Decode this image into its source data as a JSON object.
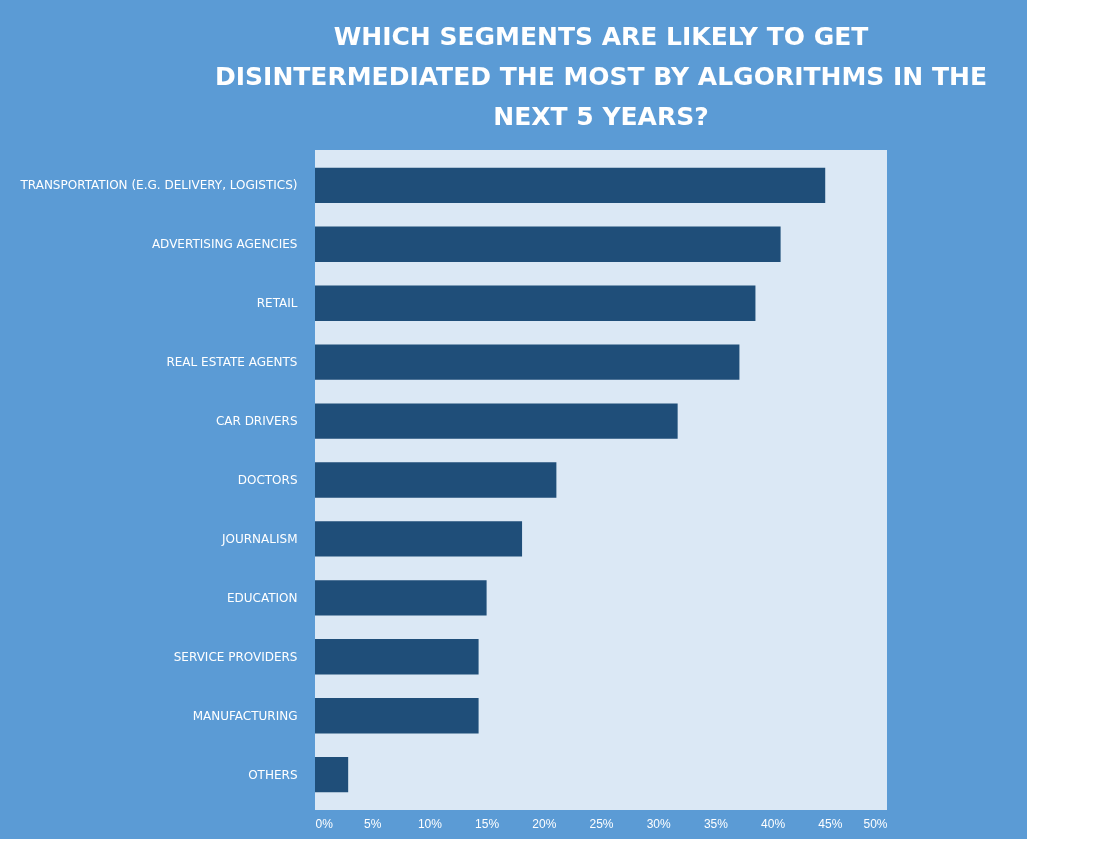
{
  "chart_data": {
    "type": "bar",
    "orientation": "horizontal",
    "title": [
      "WHICH SEGMENTS ARE LIKELY TO GET",
      "DISINTERMEDIATED THE MOST BY ALGORITHMS IN THE",
      "NEXT 5 YEARS?"
    ],
    "categories": [
      "TRANSPORTATION (E.G. DELIVERY, LOGISTICS)",
      "ADVERTISING AGENCIES",
      "RETAIL",
      "REAL ESTATE AGENTS",
      "CAR DRIVERS",
      "DOCTORS",
      "JOURNALISM",
      "EDUCATION",
      "SERVICE PROVIDERS",
      "MANUFACTURING",
      "OTHERS"
    ],
    "values": [
      44.6,
      40.7,
      38.5,
      37.1,
      31.7,
      21.1,
      18.1,
      15.0,
      14.3,
      14.3,
      2.9
    ],
    "color": "#1f4e79",
    "xlim": [
      0,
      50
    ],
    "xticks": [
      {
        "value": 0,
        "label": "0%"
      },
      {
        "value": 5,
        "label": "5%"
      },
      {
        "value": 10,
        "label": "10%"
      },
      {
        "value": 15,
        "label": "15%"
      },
      {
        "value": 20,
        "label": "20%"
      },
      {
        "value": 25,
        "label": "25%"
      },
      {
        "value": 30,
        "label": "30%"
      },
      {
        "value": 35,
        "label": "35%"
      },
      {
        "value": 40,
        "label": "40%"
      },
      {
        "value": 45,
        "label": "45%"
      },
      {
        "value": 50,
        "label": "50%"
      }
    ],
    "grid": false
  }
}
